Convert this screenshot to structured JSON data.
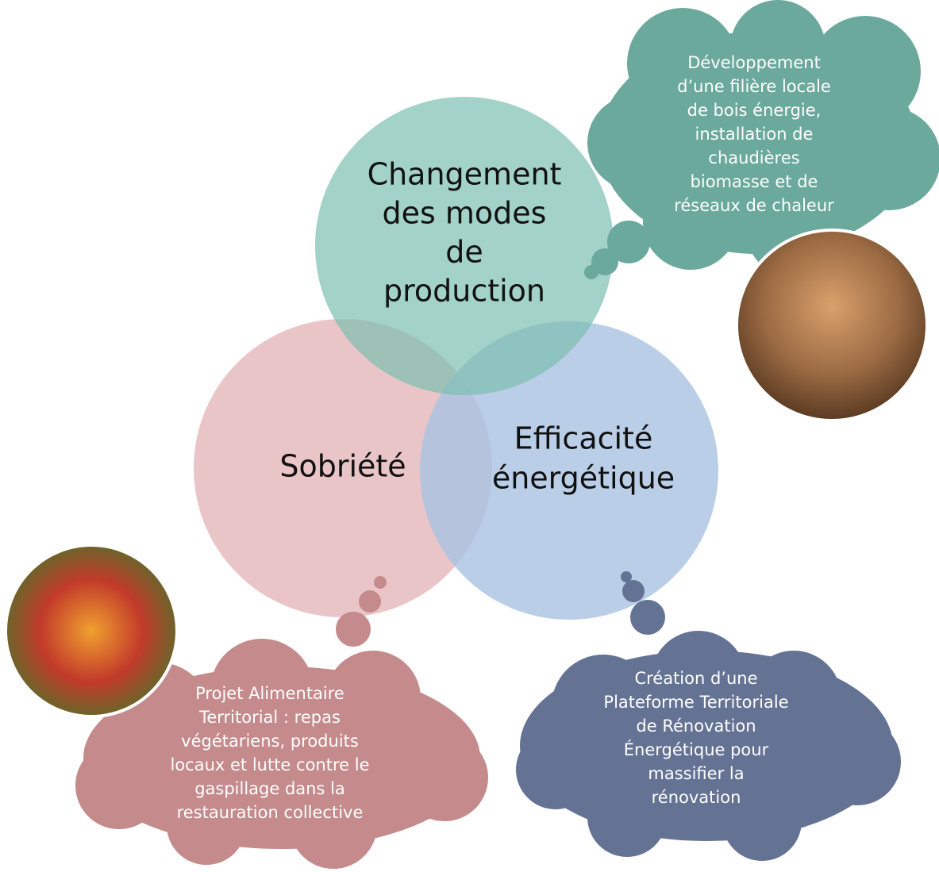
{
  "circles": [
    {
      "label": [
        "Changement",
        "des modes",
        "de",
        "production"
      ]
    },
    {
      "label": [
        "Sobriété"
      ]
    },
    {
      "label": [
        "Efficacité",
        "énergétique"
      ]
    }
  ],
  "clouds": [
    {
      "lines": [
        "Développement",
        "d’une filière locale",
        "de bois énergie,",
        "installation de",
        "chaudières",
        "biomasse et de",
        "réseaux de chaleur"
      ]
    },
    {
      "lines": [
        "Projet Alimentaire",
        "Territorial : repas",
        "végétariens, produits",
        "locaux et lutte contre le",
        "gaspillage dans la",
        "restauration collective"
      ]
    },
    {
      "lines": [
        "Création d’une",
        "Plateforme Territoriale",
        "de Rénovation",
        "Énergétique pour",
        "massifier la",
        "rénovation"
      ]
    }
  ]
}
